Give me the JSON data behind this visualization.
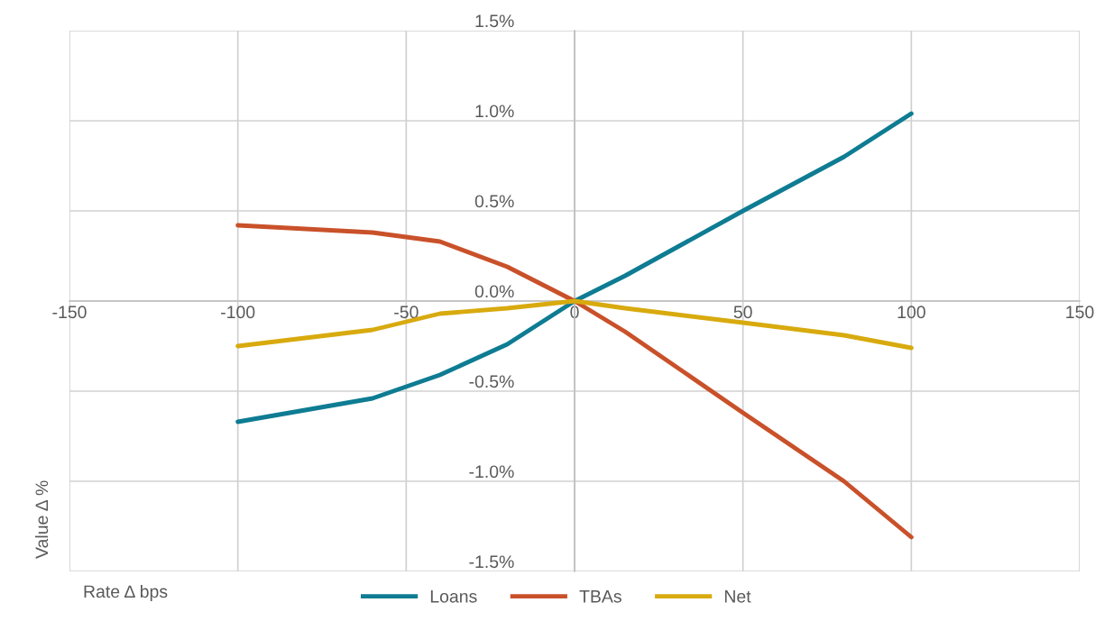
{
  "chart_data": {
    "type": "line",
    "xlabel": "Rate Δ bps",
    "ylabel": "Value Δ %",
    "xlim": [
      -150,
      150
    ],
    "xticks": [
      -150,
      -100,
      -50,
      0,
      50,
      100,
      150
    ],
    "ylim": [
      -1.5,
      1.5
    ],
    "yticks": [
      {
        "value": -1.5,
        "label": "-1.5%"
      },
      {
        "value": -1.0,
        "label": "-1.0%"
      },
      {
        "value": -0.5,
        "label": "-0.5%"
      },
      {
        "value": 0,
        "label": "0.0%"
      },
      {
        "value": 0.5,
        "label": "0.5%"
      },
      {
        "value": 1.0,
        "label": "1.0%"
      },
      {
        "value": 1.5,
        "label": "1.5%"
      }
    ],
    "x": [
      -100,
      -60,
      -40,
      -20,
      0,
      15,
      50,
      80,
      100
    ],
    "series": [
      {
        "name": "Loans",
        "color": "#0e7c93",
        "values": [
          -0.67,
          -0.54,
          -0.41,
          -0.24,
          0,
          0.14,
          0.5,
          0.8,
          1.04
        ]
      },
      {
        "name": "TBAs",
        "color": "#c9512a",
        "values": [
          0.42,
          0.38,
          0.33,
          0.19,
          0,
          -0.17,
          -0.62,
          -1.0,
          -1.31
        ]
      },
      {
        "name": "Net",
        "color": "#d8aa0e",
        "values": [
          -0.25,
          -0.16,
          -0.07,
          -0.04,
          0,
          -0.04,
          -0.12,
          -0.19,
          -0.26
        ]
      }
    ],
    "grid": true,
    "legend": "bottom",
    "marker": "none",
    "line_style": "solid"
  }
}
